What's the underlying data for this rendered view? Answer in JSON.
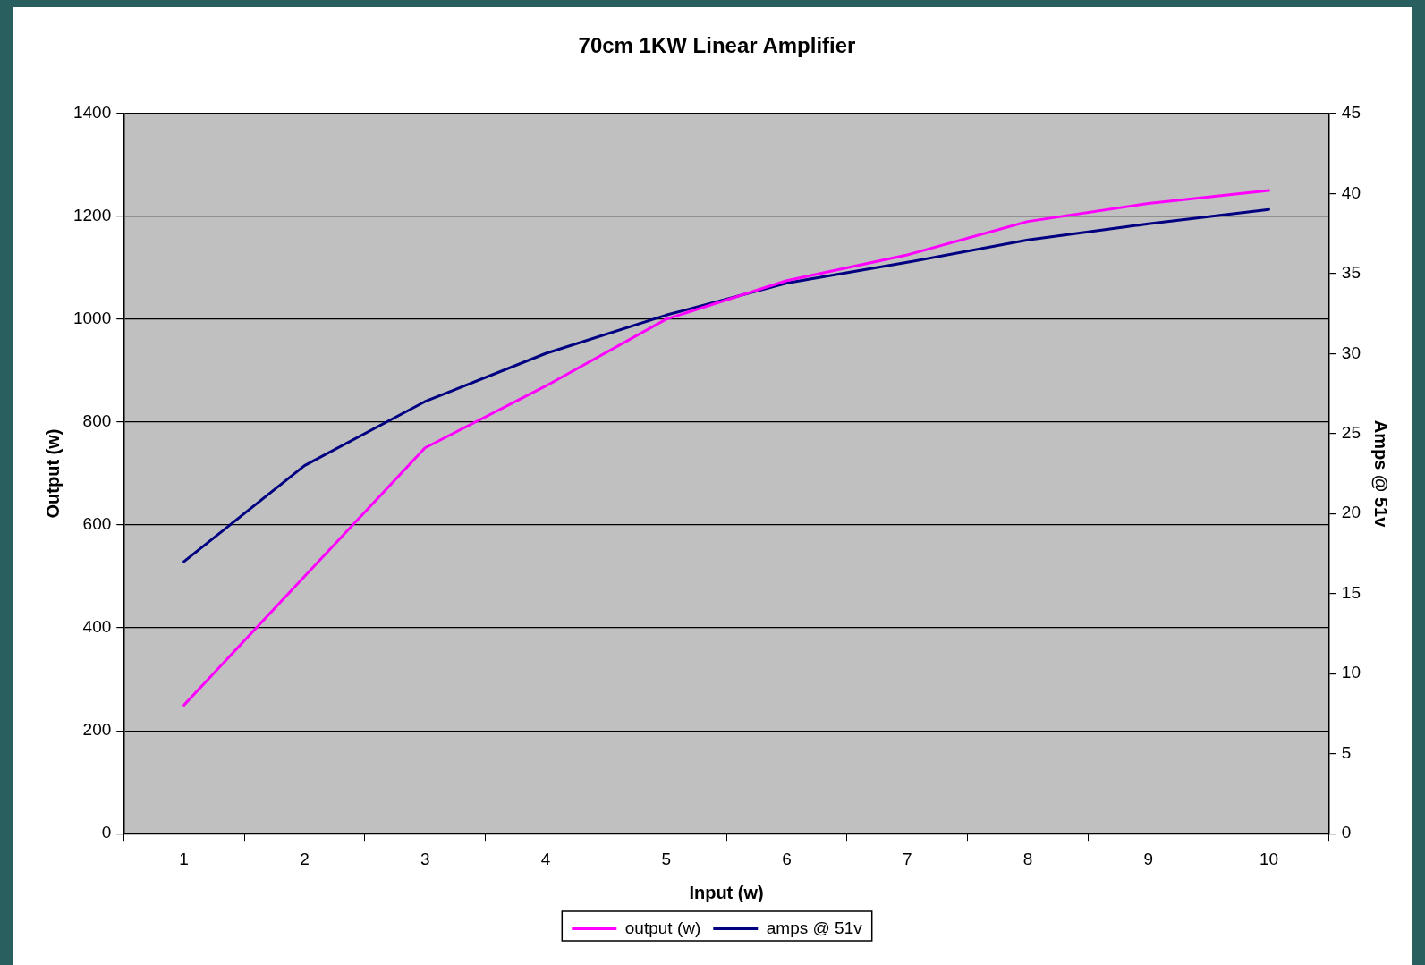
{
  "chart_data": {
    "type": "line",
    "title": "70cm 1KW Linear Amplifier",
    "xlabel": "Input (w)",
    "ylabel": "Output (w)",
    "y2label": "Amps @ 51v",
    "categories": [
      "1",
      "2",
      "3",
      "4",
      "5",
      "6",
      "7",
      "8",
      "9",
      "10"
    ],
    "series": [
      {
        "name": "output (w)",
        "color": "#ff00ff",
        "values": [
          250,
          500,
          750,
          870,
          1000,
          1075,
          1125,
          1190,
          1225,
          1250
        ]
      },
      {
        "name": "amps @ 51v",
        "color": "#000080",
        "axis": "y2",
        "values": [
          17,
          23,
          27,
          30,
          32.4,
          34.4,
          35.7,
          37.1,
          38.1,
          39
        ]
      }
    ],
    "ylim": [
      0,
      1400
    ],
    "yticks": [
      0,
      200,
      400,
      600,
      800,
      1000,
      1200,
      1400
    ],
    "y2lim": [
      0,
      45
    ],
    "y2ticks": [
      0,
      5,
      10,
      15,
      20,
      25,
      30,
      35,
      40,
      45
    ],
    "grid": "y",
    "legend": "bottom",
    "marker": "none",
    "line_style": "solid"
  }
}
